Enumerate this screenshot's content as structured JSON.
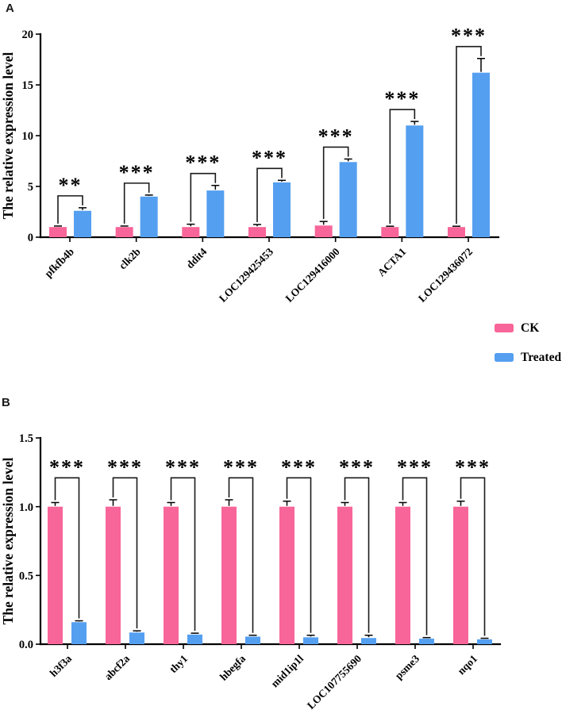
{
  "figure": {
    "panels": [
      {
        "letter": "A"
      },
      {
        "letter": "B"
      }
    ],
    "legend": [
      {
        "label": "CK",
        "color": "#F76599"
      },
      {
        "label": "Treated",
        "color": "#549FF0"
      }
    ]
  },
  "colors": {
    "ck": "#F76599",
    "treated": "#549FF0",
    "axis": "#000000"
  },
  "chart_data": [
    {
      "type": "bar",
      "panel": "A",
      "title": "",
      "ylabel": "The relative expression level",
      "xlabel": "",
      "ylim": [
        0,
        20
      ],
      "yticks": [
        0,
        5,
        10,
        15,
        20
      ],
      "ytick_labels": [
        "0",
        "5",
        "10",
        "15",
        "20"
      ],
      "grid": false,
      "legend_position": "right-below",
      "categories": [
        "pfkfb4b",
        "clk2b",
        "ddit4",
        "LOC129425453",
        "LOC129416000",
        "ACTA1",
        "LOC129436072"
      ],
      "series": [
        {
          "name": "CK",
          "color_key": "ck",
          "values": [
            1.0,
            1.0,
            1.0,
            1.0,
            1.15,
            1.0,
            1.0
          ],
          "errors": [
            0.1,
            0.1,
            0.28,
            0.25,
            0.4,
            0.08,
            0.08
          ]
        },
        {
          "name": "Treated",
          "color_key": "treated",
          "values": [
            2.6,
            4.0,
            4.6,
            5.4,
            7.4,
            11.0,
            16.2
          ],
          "errors": [
            0.3,
            0.15,
            0.5,
            0.2,
            0.3,
            0.4,
            1.4
          ]
        }
      ],
      "significance": [
        "**",
        "***",
        "***",
        "***",
        "***",
        "***",
        "***"
      ]
    },
    {
      "type": "bar",
      "panel": "B",
      "title": "",
      "ylabel": "The relative expression level",
      "xlabel": "",
      "ylim": [
        0,
        1.5
      ],
      "yticks": [
        0,
        0.5,
        1.0,
        1.5
      ],
      "ytick_labels": [
        "0.0",
        "0.5",
        "1.0",
        "1.5"
      ],
      "grid": false,
      "categories": [
        "h3f3a",
        "abcf2a",
        "thy1",
        "hbegfa",
        "mid1ip1l",
        "LOC107755690",
        "psme3",
        "nqo1"
      ],
      "series": [
        {
          "name": "CK",
          "color_key": "ck",
          "values": [
            1.0,
            1.0,
            1.0,
            1.0,
            1.0,
            1.0,
            1.0,
            1.0
          ],
          "errors": [
            0.03,
            0.05,
            0.03,
            0.05,
            0.04,
            0.03,
            0.03,
            0.04
          ]
        },
        {
          "name": "Treated",
          "color_key": "treated",
          "values": [
            0.16,
            0.085,
            0.07,
            0.055,
            0.05,
            0.045,
            0.04,
            0.035
          ],
          "errors": [
            0.01,
            0.012,
            0.01,
            0.01,
            0.015,
            0.02,
            0.008,
            0.008
          ]
        }
      ],
      "significance": [
        "***",
        "***",
        "***",
        "***",
        "***",
        "***",
        "***",
        "***"
      ]
    }
  ]
}
